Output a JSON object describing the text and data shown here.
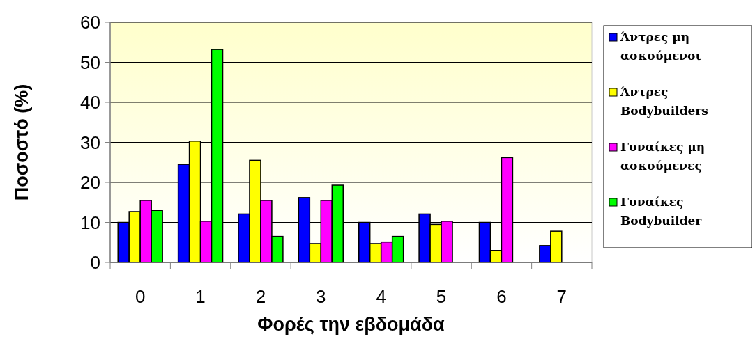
{
  "chart_data": {
    "type": "bar",
    "xlabel": "Φορές την εβδομάδα",
    "ylabel": "Ποσοστό  (%)",
    "categories": [
      "0",
      "1",
      "2",
      "3",
      "4",
      "5",
      "6",
      "7"
    ],
    "series": [
      {
        "name": "Άντρες  μη ασκούμενοι",
        "color": "#0000ff",
        "values": [
          10,
          24.5,
          12.1,
          16.2,
          10,
          12.1,
          10,
          4.2
        ]
      },
      {
        "name": "Άντρες Bodybuilders",
        "color": "#ffff00",
        "values": [
          12.7,
          30.3,
          25.5,
          4.7,
          4.7,
          9.5,
          3,
          7.8
        ]
      },
      {
        "name": "Γυναίκες μη ασκούμενες",
        "color": "#ff00ff",
        "values": [
          15.5,
          10.3,
          15.5,
          15.5,
          5.1,
          10.3,
          26.2,
          null
        ]
      },
      {
        "name": "Γυναίκες Bodybuilder",
        "color": "#00ff00",
        "values": [
          13,
          53.2,
          6.5,
          19.3,
          6.5,
          null,
          null,
          null
        ]
      }
    ],
    "ylim": [
      0,
      60
    ],
    "yticks": [
      0,
      10,
      20,
      30,
      40,
      50,
      60
    ],
    "grid": "y",
    "legend": "right"
  }
}
